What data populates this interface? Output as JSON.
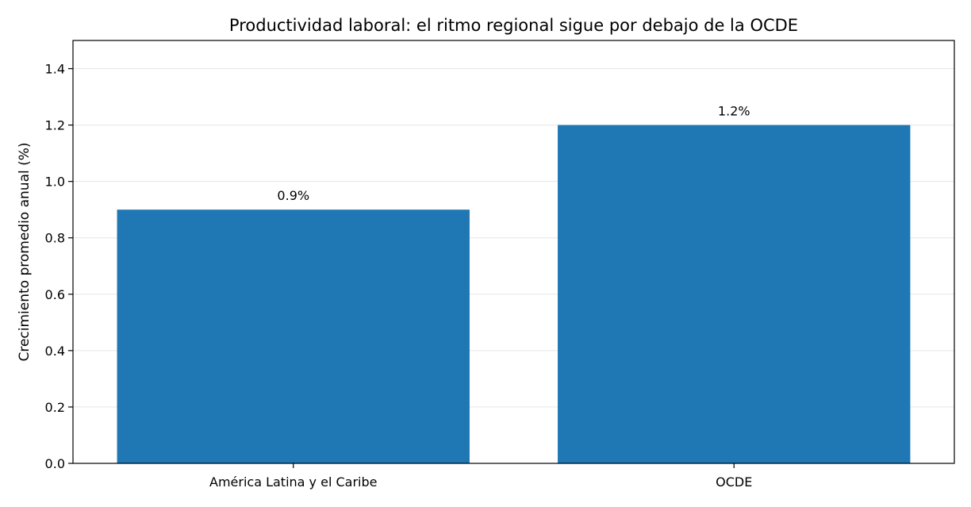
{
  "chart_data": {
    "type": "bar",
    "title": "Productividad laboral: el ritmo regional sigue por debajo de la OCDE",
    "xlabel": "",
    "ylabel": "Crecimiento promedio anual (%)",
    "categories": [
      "América Latina y el Caribe",
      "OCDE"
    ],
    "values": [
      0.9,
      1.2
    ],
    "value_labels": [
      "0.9%",
      "1.2%"
    ],
    "ylim": [
      0,
      1.5
    ],
    "yticks": [
      0.0,
      0.2,
      0.4,
      0.6,
      0.8,
      1.0,
      1.2,
      1.4
    ],
    "ytick_labels": [
      "0.0",
      "0.2",
      "0.4",
      "0.6",
      "0.8",
      "1.0",
      "1.2",
      "1.4"
    ],
    "grid": "horizontal",
    "legend": "none",
    "bar_color": "#1f77b4"
  }
}
